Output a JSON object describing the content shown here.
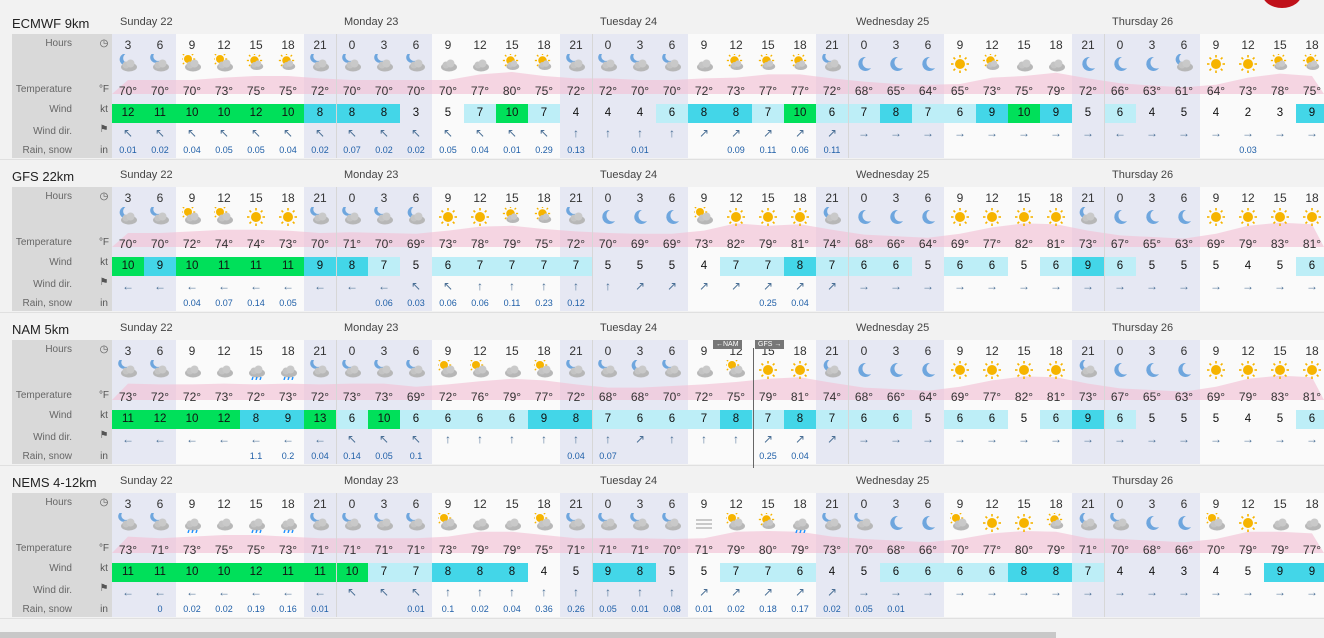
{
  "row_labels": {
    "hours": "Hours",
    "temperature": "Temperature",
    "wind": "Wind",
    "wind_dir": "Wind dir.",
    "rain": "Rain, snow"
  },
  "row_units": {
    "temperature": "°F",
    "wind": "kt",
    "rain": "in"
  },
  "day_labels": [
    "Sunday 22",
    "Monday 23",
    "Tuesday 24",
    "Wednesday 25",
    "Thursday 26"
  ],
  "hours_row": [
    "3",
    "6",
    "9",
    "12",
    "15",
    "18",
    "21",
    "0",
    "3",
    "6",
    "9",
    "12",
    "15",
    "18",
    "21",
    "0",
    "3",
    "6",
    "9",
    "12",
    "15",
    "18",
    "21",
    "0",
    "3",
    "6",
    "9",
    "12",
    "15",
    "18",
    "21",
    "0",
    "3",
    "6",
    "9",
    "12",
    "15",
    "18"
  ],
  "marker": {
    "left": "←NAM",
    "right": "GFS →"
  },
  "colors": {
    "wind_high": "#00e05a",
    "wind_mid": "#43d6e8",
    "wind_low": "#bdeef7",
    "night": "#e6e8f3",
    "temp_curve": "#f2c1d6",
    "rain": "#1f5fa8"
  },
  "models": [
    {
      "name": "ECMWF 9km",
      "weather": [
        "night-partly",
        "night-cloudy",
        "partly",
        "partly",
        "sun-cloud",
        "sun-cloud",
        "night-cloudy",
        "night-cloudy",
        "night-cloudy",
        "night-cloudy",
        "cloudy",
        "cloudy",
        "sun-cloud",
        "sun-cloud",
        "night-cloudy",
        "night-cloudy",
        "night-cloudy",
        "night-cloudy",
        "cloudy",
        "sun-cloud",
        "sun-cloud",
        "sun-cloud",
        "night-cloudy",
        "moon",
        "moon",
        "moon",
        "sun",
        "sun-cloud",
        "cloudy",
        "cloudy",
        "moon",
        "moon",
        "moon",
        "night-partly",
        "sun",
        "sun",
        "sun-cloud",
        "sun-cloud"
      ],
      "temps": [
        "70°",
        "70°",
        "70°",
        "73°",
        "75°",
        "75°",
        "72°",
        "70°",
        "70°",
        "70°",
        "70°",
        "77°",
        "80°",
        "75°",
        "72°",
        "72°",
        "70°",
        "70°",
        "72°",
        "73°",
        "77°",
        "77°",
        "72°",
        "68°",
        "65°",
        "64°",
        "65°",
        "73°",
        "75°",
        "79°",
        "72°",
        "66°",
        "63°",
        "61°",
        "64°",
        "73°",
        "78°",
        "75°"
      ],
      "wind": [
        "12",
        "11",
        "10",
        "10",
        "12",
        "10",
        "8",
        "8",
        "8",
        "3",
        "5",
        "7",
        "10",
        "7",
        "4",
        "4",
        "4",
        "6",
        "8",
        "8",
        "7",
        "10",
        "6",
        "7",
        "8",
        "7",
        "6",
        "9",
        "10",
        "9",
        "5",
        "6",
        "4",
        "5",
        "4",
        "2",
        "3",
        "9"
      ],
      "dir": [
        "↖",
        "↖",
        "↖",
        "↖",
        "↖",
        "↖",
        "↖",
        "↖",
        "↖",
        "↖",
        "↖",
        "↖",
        "↖",
        "↖",
        "↑",
        "↑",
        "↑",
        "↑",
        "↗",
        "↗",
        "↗",
        "↗",
        "↗",
        "→",
        "→",
        "→",
        "→",
        "→",
        "→",
        "→",
        "→",
        "←",
        "→",
        "→",
        "→",
        "→",
        "→",
        "→"
      ],
      "rain": [
        "0.01",
        "0.02",
        "0.04",
        "0.05",
        "0.05",
        "0.04",
        "0.02",
        "0.07",
        "0.02",
        "0.02",
        "0.05",
        "0.04",
        "0.01",
        "0.29",
        "0.13",
        "",
        "0.01",
        "",
        "",
        "0.09",
        "0.11",
        "0.06",
        "0.11",
        "",
        "",
        "",
        "",
        "",
        "",
        "",
        "",
        "",
        "",
        "",
        "",
        "0.03",
        "",
        ""
      ]
    },
    {
      "name": "GFS 22km",
      "weather": [
        "night-partly",
        "night-cloudy",
        "partly",
        "partly",
        "sun",
        "sun",
        "night-cloudy",
        "night-cloudy",
        "night-cloudy",
        "night-partly",
        "sun",
        "sun",
        "sun-cloud",
        "sun-cloud",
        "night-cloudy",
        "moon",
        "moon",
        "moon",
        "partly",
        "sun",
        "sun",
        "sun",
        "night-partly",
        "moon",
        "moon",
        "moon",
        "sun",
        "sun",
        "sun",
        "sun",
        "night-partly",
        "moon",
        "moon",
        "moon",
        "sun",
        "sun",
        "sun",
        "sun"
      ],
      "temps": [
        "70°",
        "70°",
        "72°",
        "74°",
        "74°",
        "73°",
        "70°",
        "71°",
        "70°",
        "69°",
        "73°",
        "78°",
        "79°",
        "75°",
        "72°",
        "70°",
        "69°",
        "69°",
        "73°",
        "82°",
        "79°",
        "81°",
        "74°",
        "68°",
        "66°",
        "64°",
        "69°",
        "77°",
        "82°",
        "81°",
        "73°",
        "67°",
        "65°",
        "63°",
        "69°",
        "79°",
        "83°",
        "81°"
      ],
      "wind": [
        "10",
        "9",
        "10",
        "11",
        "11",
        "11",
        "9",
        "8",
        "7",
        "5",
        "6",
        "7",
        "7",
        "7",
        "7",
        "5",
        "5",
        "5",
        "4",
        "7",
        "7",
        "8",
        "7",
        "6",
        "6",
        "5",
        "6",
        "6",
        "5",
        "6",
        "9",
        "6",
        "5",
        "5",
        "5",
        "4",
        "5",
        "6"
      ],
      "dir": [
        "←",
        "←",
        "←",
        "←",
        "←",
        "←",
        "←",
        "←",
        "←",
        "↖",
        "↖",
        "↑",
        "↑",
        "↑",
        "↑",
        "↑",
        "↗",
        "↗",
        "↗",
        "↗",
        "↗",
        "↗",
        "↗",
        "→",
        "→",
        "→",
        "→",
        "→",
        "→",
        "→",
        "→",
        "→",
        "→",
        "→",
        "→",
        "→",
        "→",
        "→"
      ],
      "rain": [
        "",
        "",
        "0.04",
        "0.07",
        "0.14",
        "0.05",
        "",
        "",
        "0.06",
        "0.03",
        "0.06",
        "0.06",
        "0.11",
        "0.23",
        "0.12",
        "",
        "",
        "",
        "",
        "",
        "0.25",
        "0.04",
        "",
        "",
        "",
        "",
        "",
        "",
        "",
        "",
        "",
        "",
        "",
        "",
        "",
        "",
        "",
        ""
      ]
    },
    {
      "name": "NAM 5km",
      "weather": [
        "night-cloudy",
        "night-cloudy",
        "cloudy",
        "cloudy",
        "rain",
        "rain",
        "night-cloudy",
        "night-cloudy",
        "night-cloudy",
        "night-cloudy",
        "partly",
        "partly",
        "cloudy",
        "partly",
        "night-cloudy",
        "night-cloudy",
        "night-partly",
        "night-cloudy",
        "cloudy",
        "partly",
        "sun",
        "sun",
        "night-partly",
        "moon",
        "moon",
        "moon",
        "sun",
        "sun",
        "sun",
        "sun",
        "night-partly",
        "moon",
        "moon",
        "moon",
        "sun",
        "sun",
        "sun",
        "sun"
      ],
      "temps": [
        "73°",
        "72°",
        "72°",
        "73°",
        "72°",
        "73°",
        "72°",
        "73°",
        "73°",
        "69°",
        "72°",
        "76°",
        "79°",
        "77°",
        "72°",
        "68°",
        "68°",
        "70°",
        "72°",
        "75°",
        "79°",
        "81°",
        "74°",
        "68°",
        "66°",
        "64°",
        "69°",
        "77°",
        "82°",
        "81°",
        "73°",
        "67°",
        "65°",
        "63°",
        "69°",
        "79°",
        "83°",
        "81°"
      ],
      "wind": [
        "11",
        "12",
        "10",
        "12",
        "8",
        "9",
        "13",
        "6",
        "10",
        "6",
        "6",
        "6",
        "6",
        "9",
        "8",
        "7",
        "6",
        "6",
        "7",
        "8",
        "7",
        "8",
        "7",
        "6",
        "6",
        "5",
        "6",
        "6",
        "5",
        "6",
        "9",
        "6",
        "5",
        "5",
        "5",
        "4",
        "5",
        "6"
      ],
      "dir": [
        "←",
        "←",
        "←",
        "←",
        "←",
        "←",
        "←",
        "↖",
        "↖",
        "↖",
        "↑",
        "↑",
        "↑",
        "↑",
        "↑",
        "↑",
        "↗",
        "↑",
        "↑",
        "↑",
        "↗",
        "↗",
        "↗",
        "→",
        "→",
        "→",
        "→",
        "→",
        "→",
        "→",
        "→",
        "→",
        "→",
        "→",
        "→",
        "→",
        "→",
        "→"
      ],
      "rain": [
        "",
        "",
        "",
        "",
        "1.1",
        "0.2",
        "0.04",
        "0.14",
        "0.05",
        "0.1",
        "",
        "",
        "",
        "",
        "0.04",
        "0.07",
        "",
        "",
        "",
        "",
        "0.25",
        "0.04",
        "",
        "",
        "",
        "",
        "",
        "",
        "",
        "",
        "",
        "",
        "",
        "",
        "",
        "",
        "",
        ""
      ]
    },
    {
      "name": "NEMS 4-12km",
      "weather": [
        "night-cloudy",
        "night-cloudy",
        "rain",
        "cloudy",
        "rain",
        "rain",
        "night-cloudy",
        "night-cloudy",
        "night-cloudy",
        "night-cloudy",
        "partly",
        "cloudy",
        "cloudy",
        "partly",
        "night-cloudy",
        "night-cloudy",
        "night-cloudy",
        "night-cloudy",
        "fog",
        "partly",
        "sun-cloud",
        "rain",
        "night-cloudy",
        "night-cloudy",
        "moon",
        "moon",
        "partly",
        "sun",
        "sun",
        "sun-cloud",
        "night-partly",
        "night-cloudy",
        "moon",
        "moon",
        "partly",
        "sun",
        "cloudy",
        "cloudy"
      ],
      "temps": [
        "73°",
        "71°",
        "73°",
        "75°",
        "75°",
        "73°",
        "71°",
        "71°",
        "71°",
        "71°",
        "73°",
        "79°",
        "79°",
        "75°",
        "71°",
        "71°",
        "71°",
        "70°",
        "71°",
        "79°",
        "80°",
        "79°",
        "73°",
        "70°",
        "68°",
        "66°",
        "70°",
        "77°",
        "80°",
        "79°",
        "71°",
        "70°",
        "68°",
        "66°",
        "70°",
        "79°",
        "79°",
        "77°"
      ],
      "wind": [
        "11",
        "11",
        "10",
        "10",
        "12",
        "11",
        "11",
        "10",
        "7",
        "7",
        "8",
        "8",
        "8",
        "4",
        "5",
        "9",
        "8",
        "5",
        "5",
        "7",
        "7",
        "6",
        "4",
        "5",
        "6",
        "6",
        "6",
        "6",
        "8",
        "8",
        "7",
        "4",
        "4",
        "3",
        "4",
        "5",
        "9",
        "9"
      ],
      "dir": [
        "←",
        "←",
        "←",
        "←",
        "←",
        "←",
        "←",
        "↖",
        "↖",
        "↖",
        "↑",
        "↑",
        "↑",
        "↑",
        "↑",
        "↑",
        "↑",
        "↑",
        "↗",
        "↗",
        "↗",
        "↗",
        "↗",
        "→",
        "→",
        "→",
        "→",
        "→",
        "→",
        "→",
        "→",
        "→",
        "→",
        "→",
        "→",
        "→",
        "→",
        "→"
      ],
      "rain": [
        "",
        "0",
        "0.02",
        "0.02",
        "0.19",
        "0.16",
        "0.01",
        "",
        "",
        "0.01",
        "0.1",
        "0.02",
        "0.04",
        "0.36",
        "0.26",
        "0.05",
        "0.01",
        "0.08",
        "0.01",
        "0.02",
        "0.18",
        "0.17",
        "0.02",
        "0.05",
        "0.01",
        "",
        "",
        "",
        "",
        "",
        "",
        "",
        "",
        "",
        "",
        "",
        "",
        ""
      ]
    }
  ]
}
